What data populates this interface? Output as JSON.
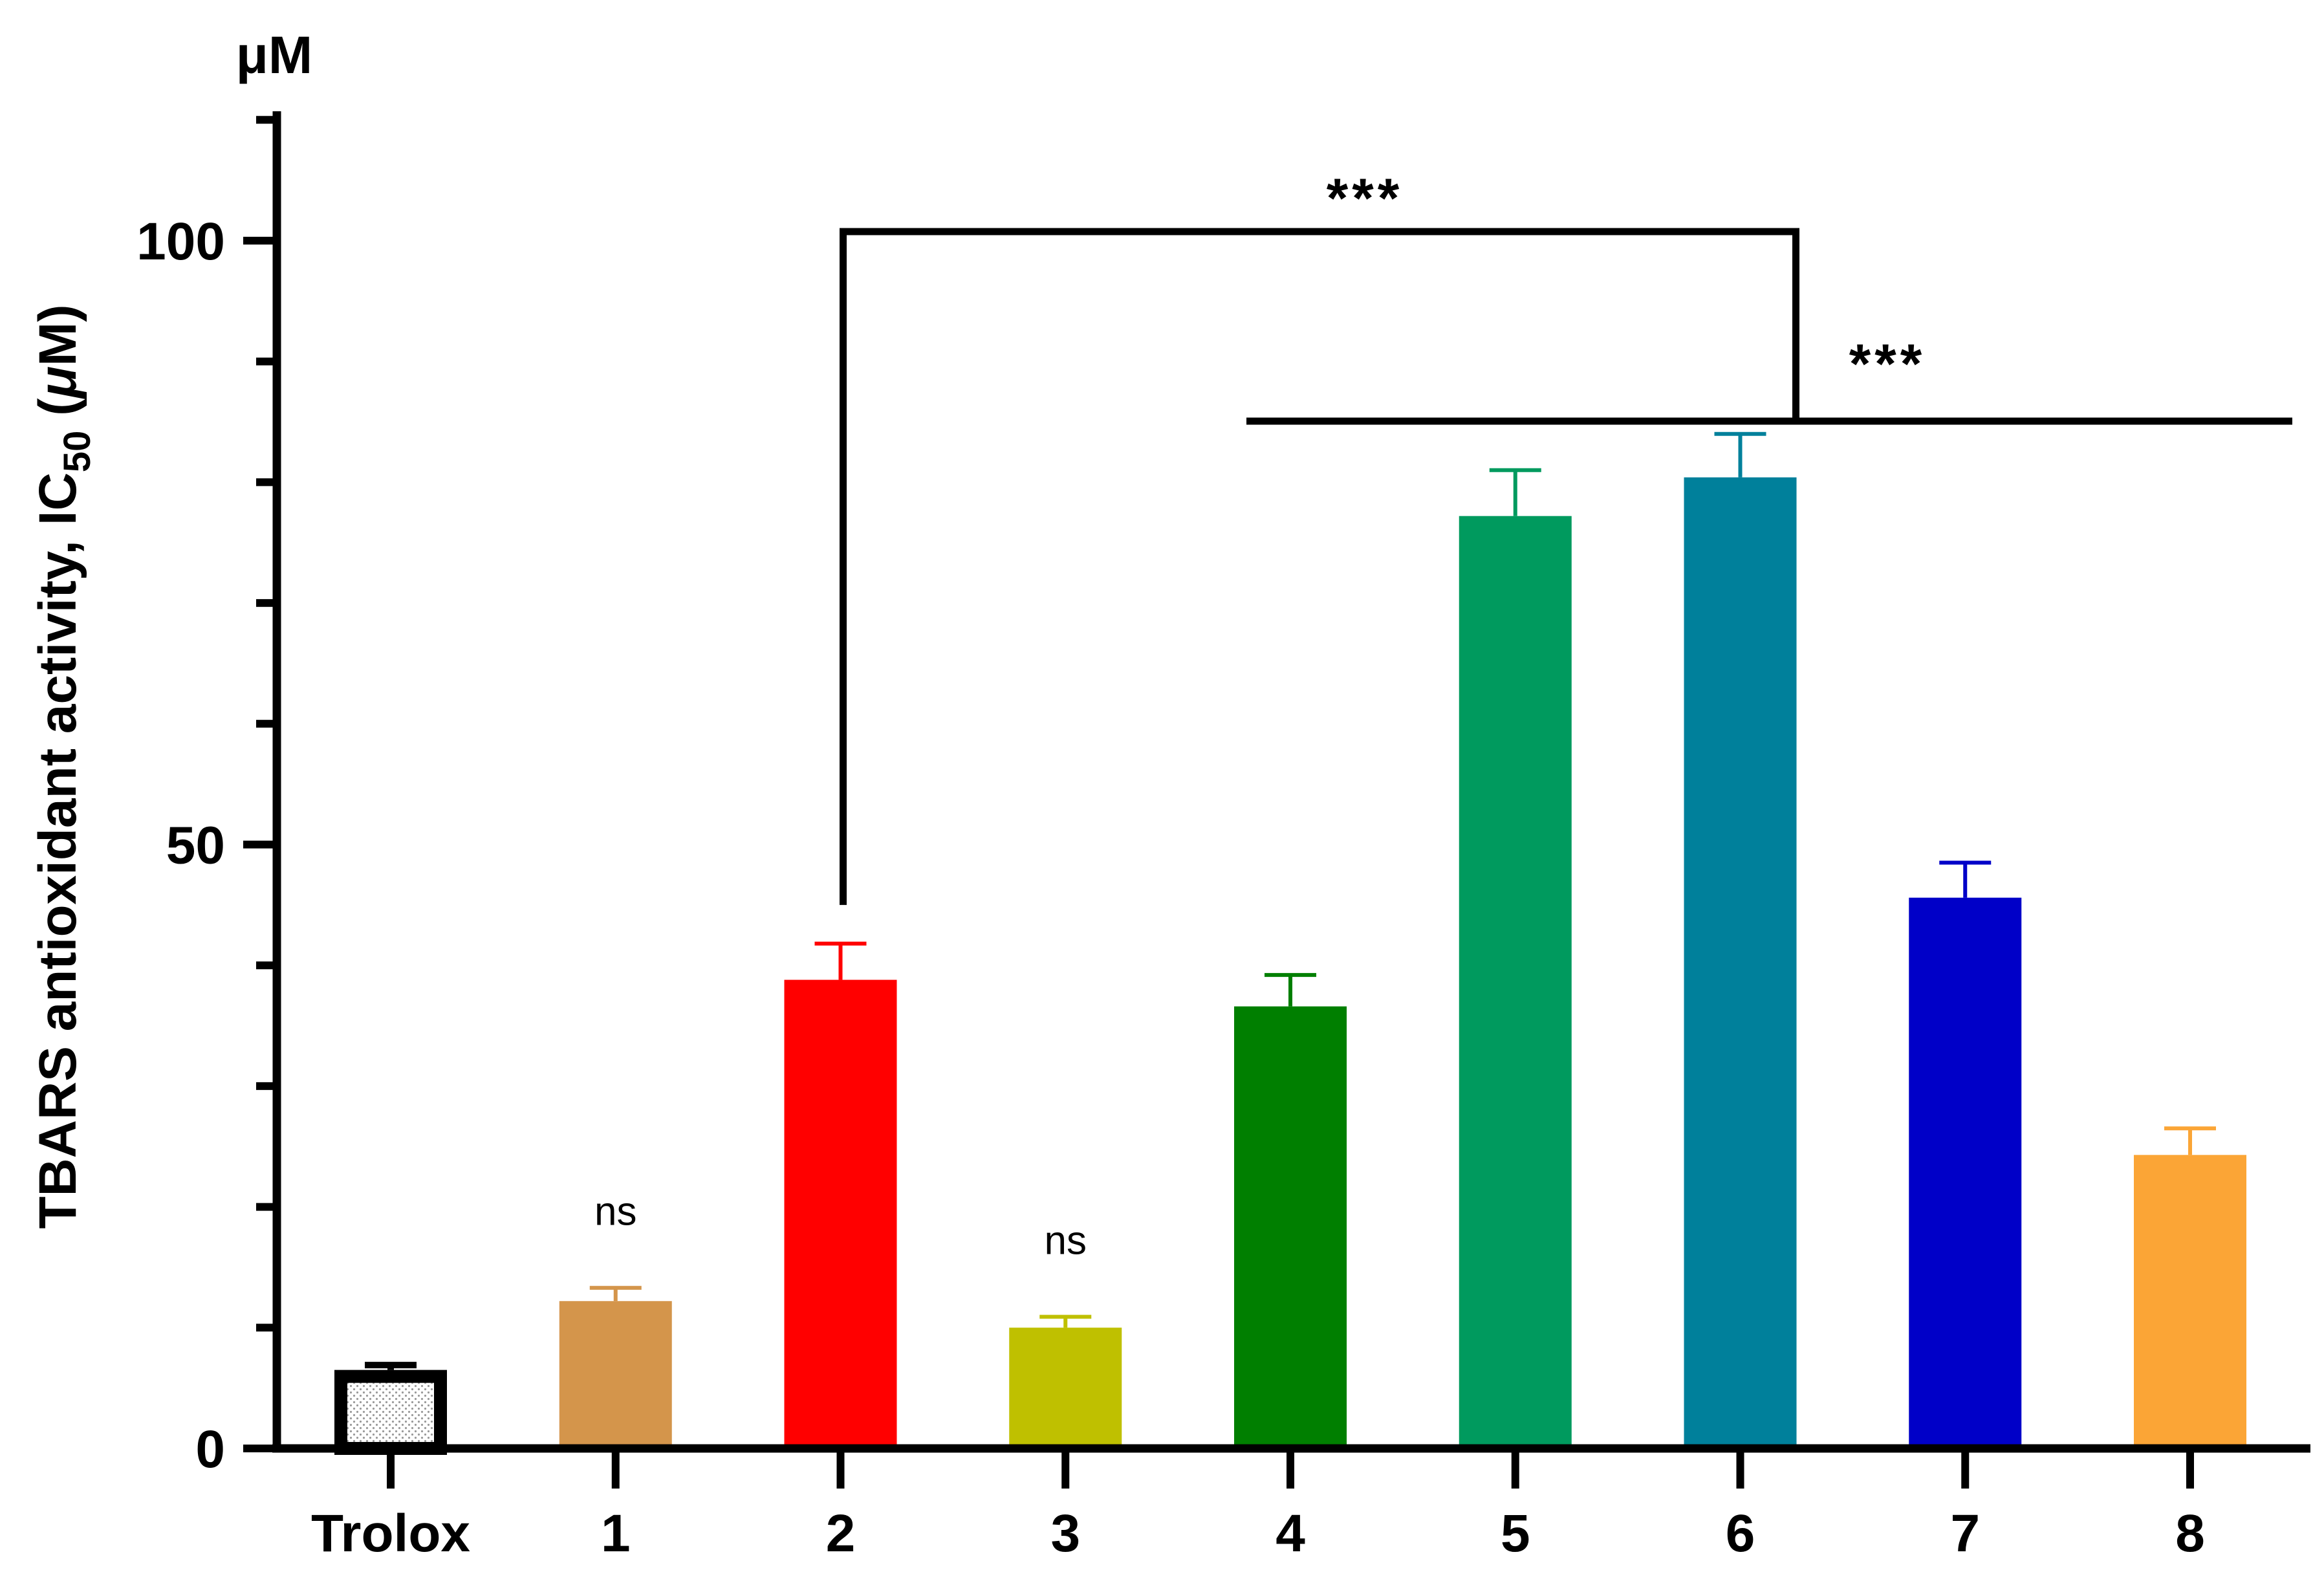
{
  "chart_data": {
    "type": "bar",
    "unit_label": "μM",
    "ylabel_parts": [
      "TBARS antioxidant activity, IC",
      "50",
      " (",
      "μ",
      "M)"
    ],
    "ylim": [
      0,
      110
    ],
    "yticks_major": [
      0,
      50,
      100
    ],
    "yticks_minor": [
      10,
      20,
      30,
      40,
      60,
      70,
      80,
      90,
      110
    ],
    "categories": [
      "Trolox",
      "1",
      "2",
      "3",
      "4",
      "5",
      "6",
      "7",
      "8"
    ],
    "values": [
      6.5,
      12.2,
      38.8,
      10.0,
      36.6,
      77.2,
      80.4,
      45.6,
      24.3
    ],
    "errors": [
      0.4,
      1.1,
      3.0,
      0.9,
      2.6,
      3.8,
      3.6,
      2.9,
      2.2
    ],
    "colors": [
      "#000000",
      "#d4954b",
      "#ff0000",
      "#bfc000",
      "#007f00",
      "#009a5e",
      "#00809b",
      "#0000c8",
      "#fba536"
    ],
    "annotations": {
      "ns_1": {
        "category": "1",
        "text": "ns"
      },
      "ns_3": {
        "category": "3",
        "text": "ns"
      },
      "bracket_top": {
        "from": "2",
        "to": "6",
        "text": "***"
      },
      "bracket_mid": {
        "from": "4",
        "to": "8",
        "text": "***"
      }
    }
  }
}
